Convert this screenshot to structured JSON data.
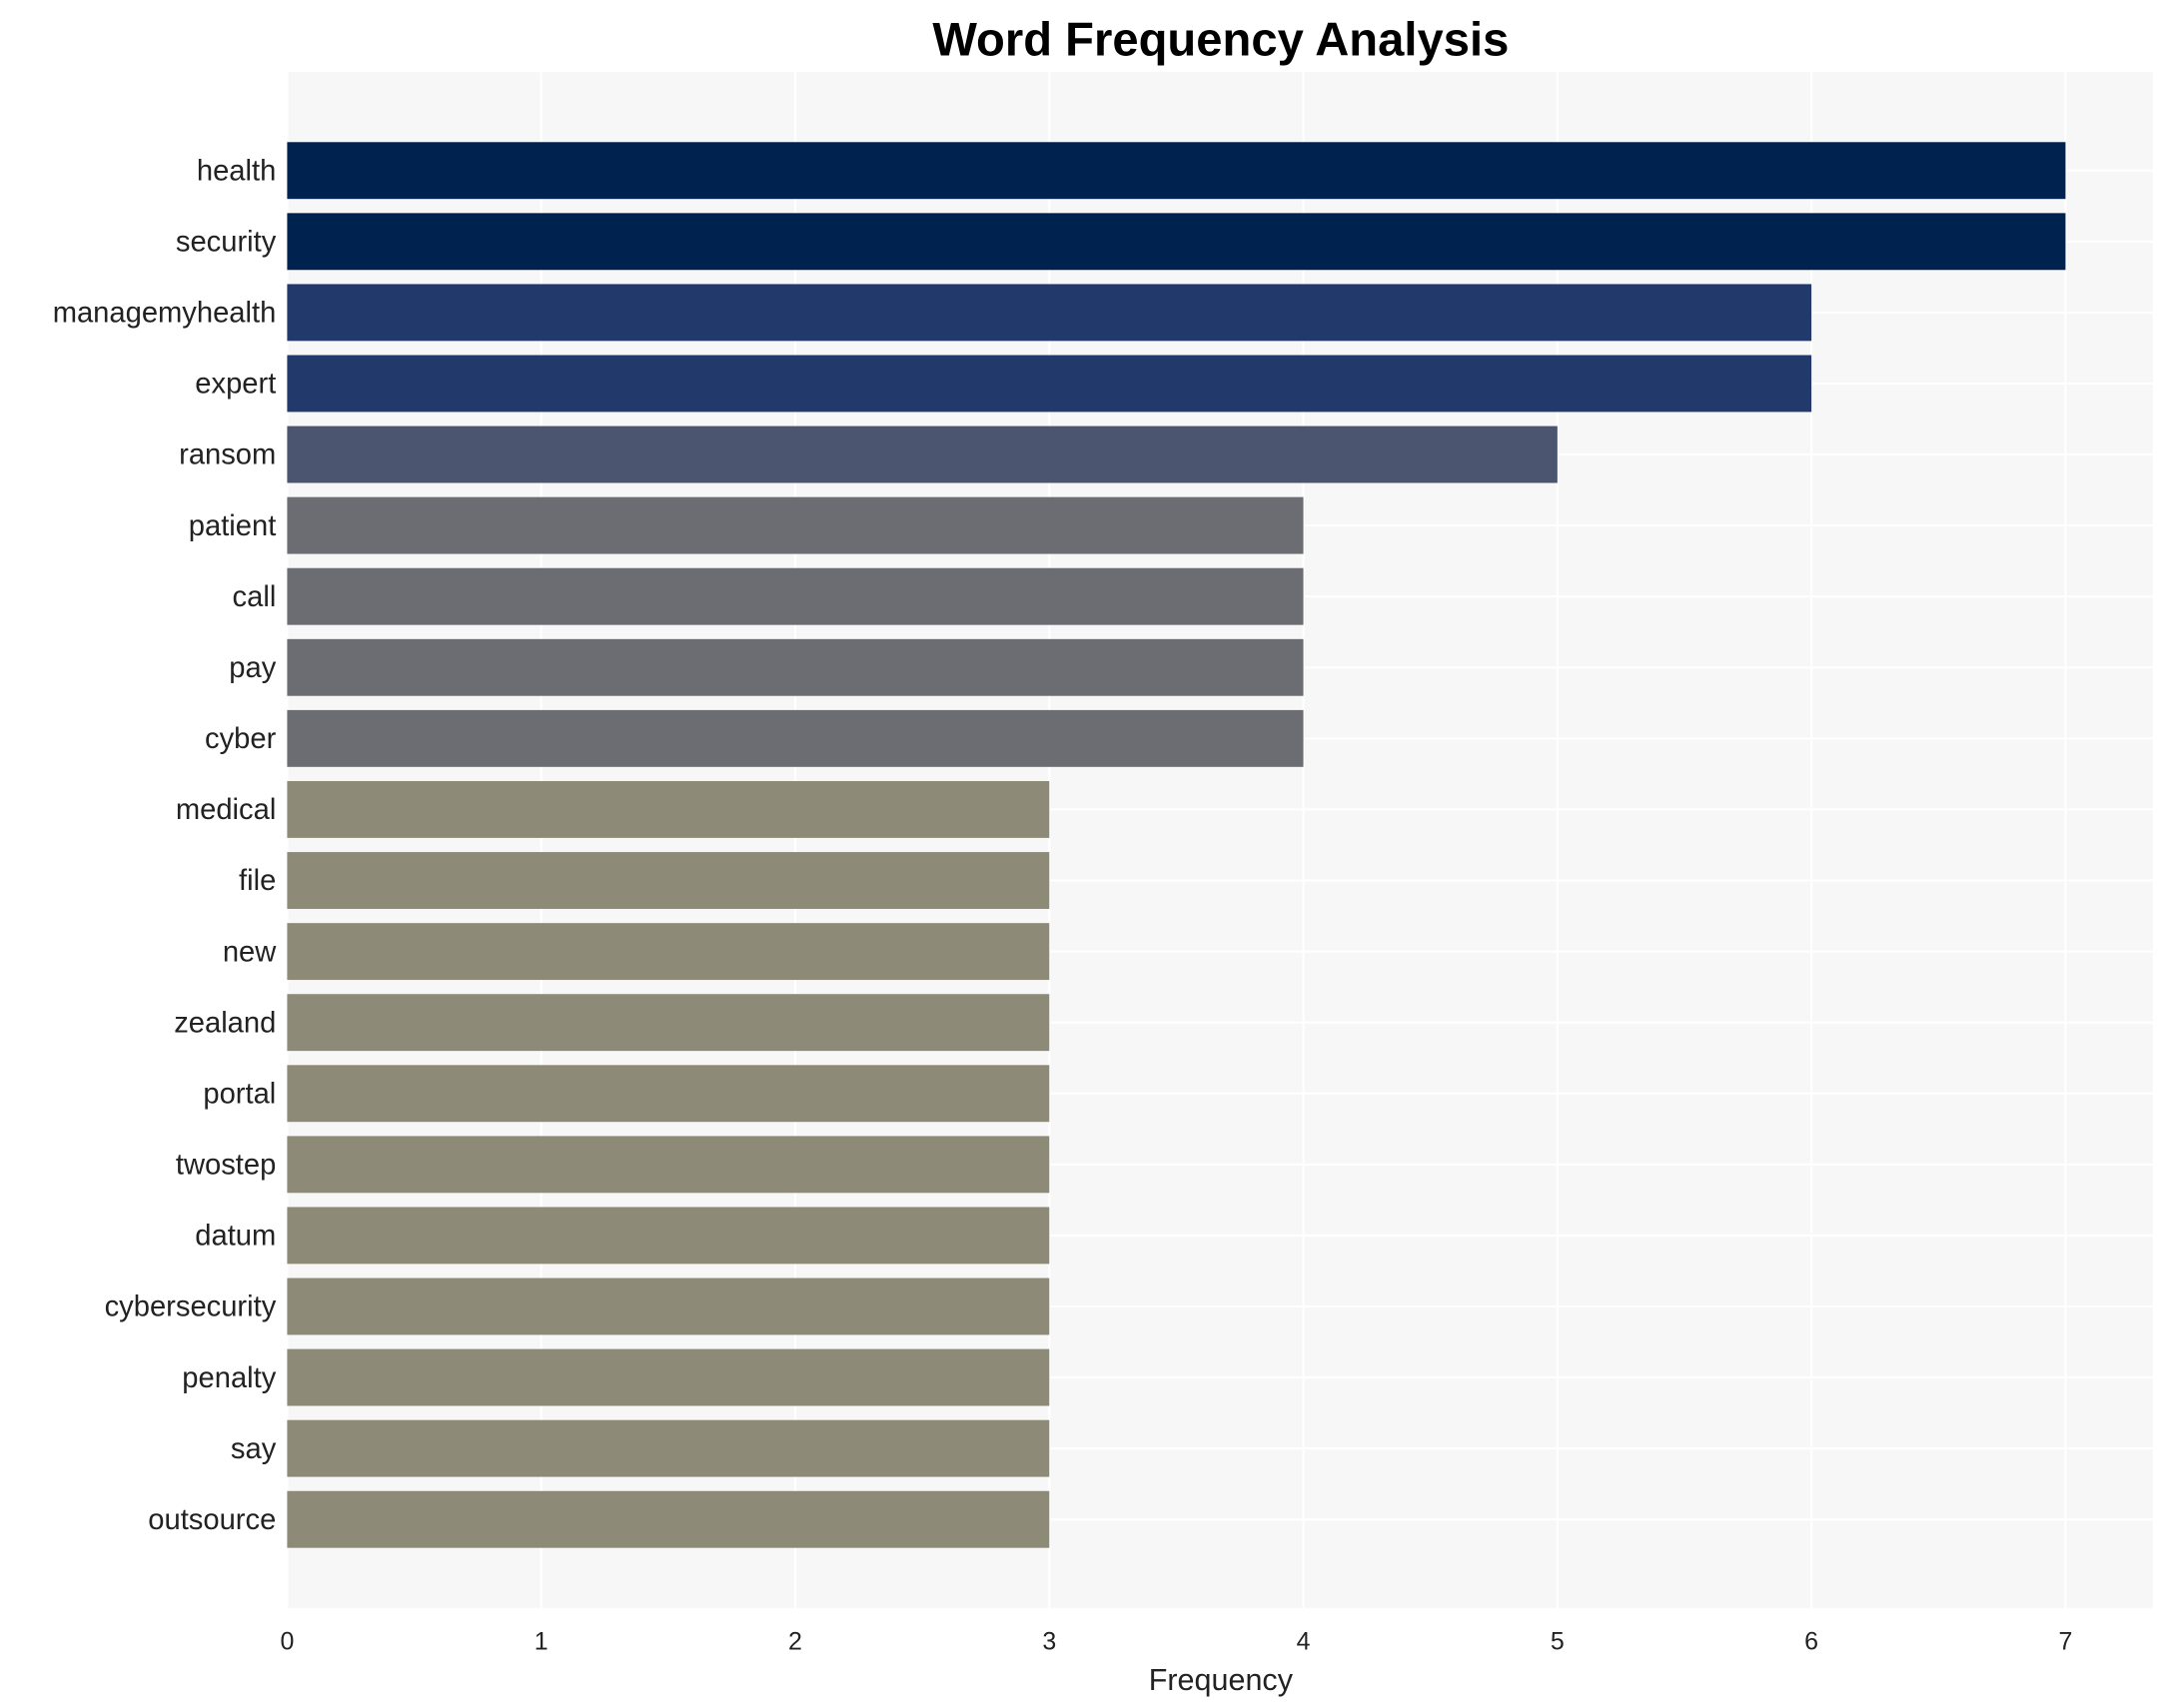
{
  "chart_data": {
    "type": "bar",
    "orientation": "horizontal",
    "title": "Word Frequency Analysis",
    "xlabel": "Frequency",
    "ylabel": "",
    "xlim": [
      0,
      7.35
    ],
    "xticks": [
      0,
      1,
      2,
      3,
      4,
      5,
      6,
      7
    ],
    "grid": true,
    "categories": [
      "health",
      "security",
      "managemyhealth",
      "expert",
      "ransom",
      "patient",
      "call",
      "pay",
      "cyber",
      "medical",
      "file",
      "new",
      "zealand",
      "portal",
      "twostep",
      "datum",
      "cybersecurity",
      "penalty",
      "say",
      "outsource"
    ],
    "values": [
      7,
      7,
      6,
      6,
      5,
      4,
      4,
      4,
      4,
      3,
      3,
      3,
      3,
      3,
      3,
      3,
      3,
      3,
      3,
      3
    ],
    "colors_by_value": {
      "7": "#00224e",
      "6": "#213a6b",
      "5": "#4b5570",
      "4": "#6c6d72",
      "3": "#8e8a78"
    },
    "background": "#f7f7f7"
  }
}
